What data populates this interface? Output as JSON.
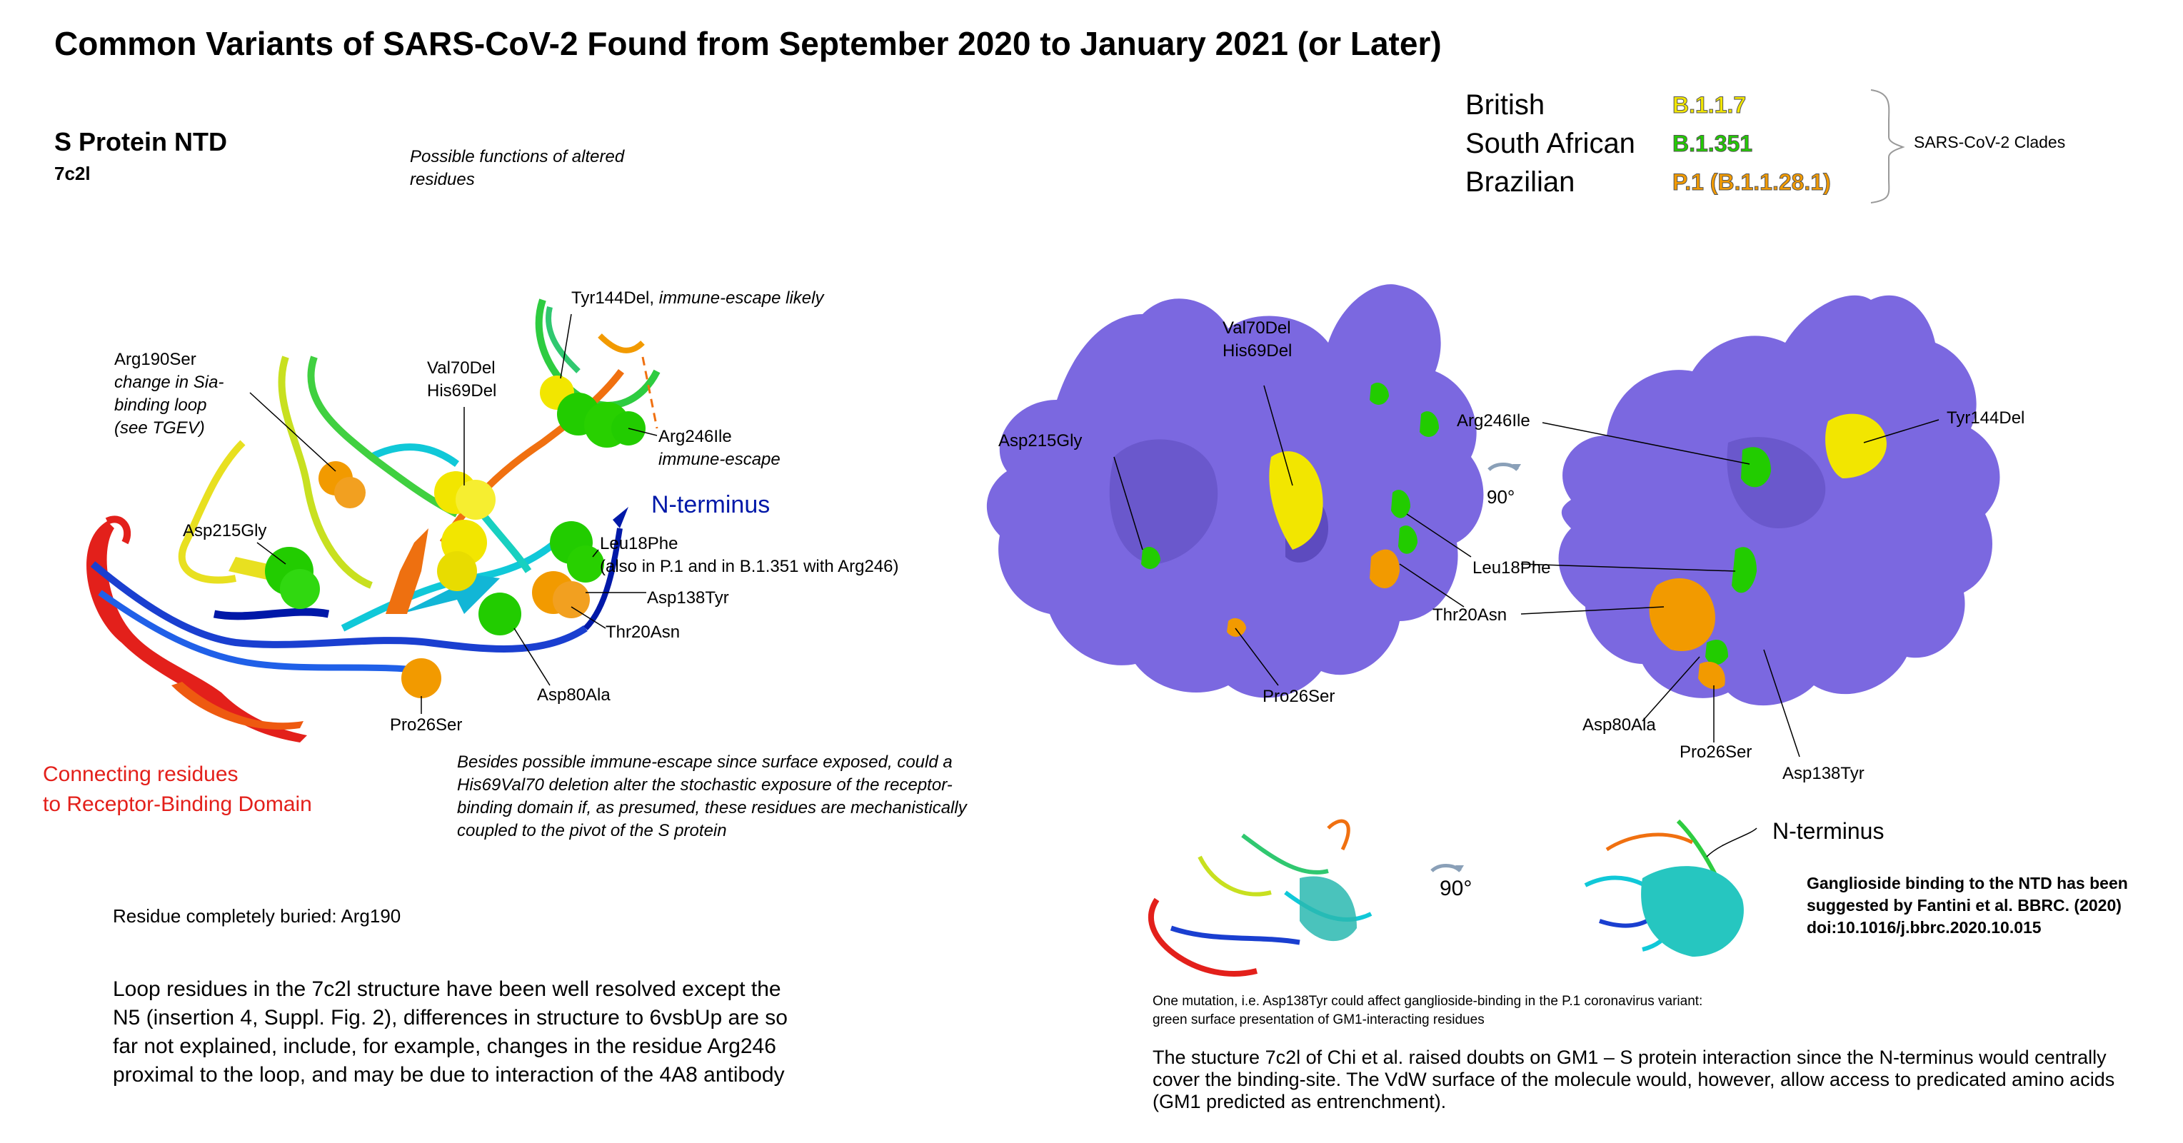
{
  "title": "Common Variants of SARS-CoV-2 Found from September 2020 to January 2021 (or Later)",
  "left_panel": {
    "heading": "S Protein NTD",
    "pdb": "7c2l",
    "functions_note": "Possible functions of altered residues",
    "labels": {
      "tyr144": "Tyr144Del,",
      "tyr144_italic": "immune-escape likely",
      "arg190_1": "Arg190Ser",
      "arg190_2": "change in Sia-",
      "arg190_3": "binding loop",
      "arg190_4": "(see TGEV)",
      "val70": "Val70Del",
      "his69": "His69Del",
      "arg246": "Arg246Ile",
      "arg246_italic": "immune-escape",
      "n_terminus": "N-terminus",
      "asp215": "Asp215Gly",
      "leu18": "Leu18Phe",
      "leu18_note": "(also in P.1 and in B.1.351 with Arg246)",
      "asp138": "Asp138Tyr",
      "thr20": "Thr20Asn",
      "asp80": "Asp80Ala",
      "pro26": "Pro26Ser"
    },
    "connecting_1": "Connecting residues",
    "connecting_2": "to Receptor-Binding Domain",
    "besides_note": "Besides possible immune-escape since surface exposed, could a His69Val70 deletion alter the stochastic exposure of the receptor-binding domain if, as presumed, these residues are mechanistically coupled to the pivot of the S protein",
    "buried": "Residue completely buried: Arg190",
    "loop_paragraph": "Loop residues in the 7c2l structure have been well resolved except the N5 (insertion 4, Suppl. Fig. 2), differences in structure to 6vsbUp are so far not explained, include, for example, changes in the residue Arg246 proximal to the loop, and may be due to interaction of the 4A8 antibody"
  },
  "legend": {
    "rows": [
      {
        "name": "British",
        "code": "B.1.1.7",
        "color": "#f2e600"
      },
      {
        "name": "South African",
        "code": "B.1.351",
        "color": "#22cc00"
      },
      {
        "name": "Brazilian",
        "code": "P.1 (B.1.1.28.1)",
        "color": "#f29a00"
      }
    ],
    "bracket_label": "SARS-CoV-2 Clades"
  },
  "surface_labels": {
    "val70": "Val70Del",
    "his69": "His69Del",
    "asp215": "Asp215Gly",
    "arg246": "Arg246Ile",
    "rotate": "90°",
    "leu18": "Leu18Phe",
    "thr20": "Thr20Asn",
    "pro26": "Pro26Ser",
    "tyr144": "Tyr144Del",
    "asp80": "Asp80Ala",
    "pro26_b": "Pro26Ser",
    "asp138": "Asp138Tyr"
  },
  "bottom_right": {
    "rotate": "90°",
    "n_terminus": "N-terminus",
    "ganglioside": "Ganglioside binding to the NTD has been suggested by Fantini et al. BBRC. (2020) doi:10.1016/j.bbrc.2020.10.015",
    "mutation_note": "One mutation, i.e. Asp138Tyr could affect ganglioside-binding in the P.1 coronavirus variant: green surface presentation of GM1-interacting residues",
    "structure_note": "The stucture 7c2l of Chi et al. raised doubts on GM1 – S protein interaction since the N-terminus would centrally cover the binding-site. The VdW surface of the molecule would, however, allow access to predicated amino acids (GM1 predicted as entrenchment)."
  },
  "colors": {
    "surface": "#7b68e0",
    "surface_dark": "#5a48b8",
    "yellow": "#f2e600",
    "green": "#22cc00",
    "orange": "#f29a00",
    "red": "#e3201b",
    "blue": "#0018a8"
  }
}
